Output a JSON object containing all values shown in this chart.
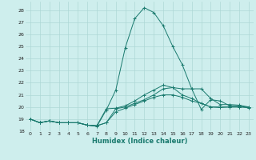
{
  "title": "",
  "xlabel": "Humidex (Indice chaleur)",
  "background_color": "#ceeeed",
  "grid_color": "#aed8d6",
  "line_color": "#1a7a6e",
  "xlim": [
    -0.5,
    23.5
  ],
  "ylim": [
    18.0,
    28.7
  ],
  "yticks": [
    18,
    19,
    20,
    21,
    22,
    23,
    24,
    25,
    26,
    27,
    28
  ],
  "xticks": [
    0,
    1,
    2,
    3,
    4,
    5,
    6,
    7,
    8,
    9,
    10,
    11,
    12,
    13,
    14,
    15,
    16,
    17,
    18,
    19,
    20,
    21,
    22,
    23
  ],
  "series": [
    [
      19.0,
      18.7,
      18.85,
      18.7,
      18.7,
      18.7,
      18.5,
      18.45,
      18.7,
      19.85,
      20.0,
      20.3,
      20.6,
      21.0,
      21.5,
      21.6,
      21.5,
      21.5,
      21.5,
      20.7,
      20.2,
      20.2,
      20.15,
      20.0
    ],
    [
      19.0,
      18.7,
      18.85,
      18.7,
      18.7,
      18.7,
      18.5,
      18.45,
      19.85,
      19.9,
      20.1,
      20.5,
      21.0,
      21.4,
      21.8,
      21.6,
      21.0,
      20.7,
      20.3,
      20.0,
      20.0,
      20.0,
      20.0,
      20.0
    ],
    [
      19.0,
      18.7,
      18.85,
      18.7,
      18.7,
      18.7,
      18.5,
      18.45,
      18.7,
      19.6,
      19.9,
      20.2,
      20.5,
      20.8,
      21.0,
      21.0,
      20.8,
      20.5,
      20.3,
      20.0,
      19.95,
      20.0,
      20.0,
      19.95
    ],
    [
      19.0,
      18.7,
      18.85,
      18.7,
      18.7,
      18.7,
      18.5,
      18.4,
      19.75,
      21.4,
      24.9,
      27.3,
      28.2,
      27.8,
      26.7,
      25.0,
      23.5,
      21.5,
      19.8,
      20.6,
      20.5,
      20.1,
      20.1,
      19.9
    ]
  ]
}
